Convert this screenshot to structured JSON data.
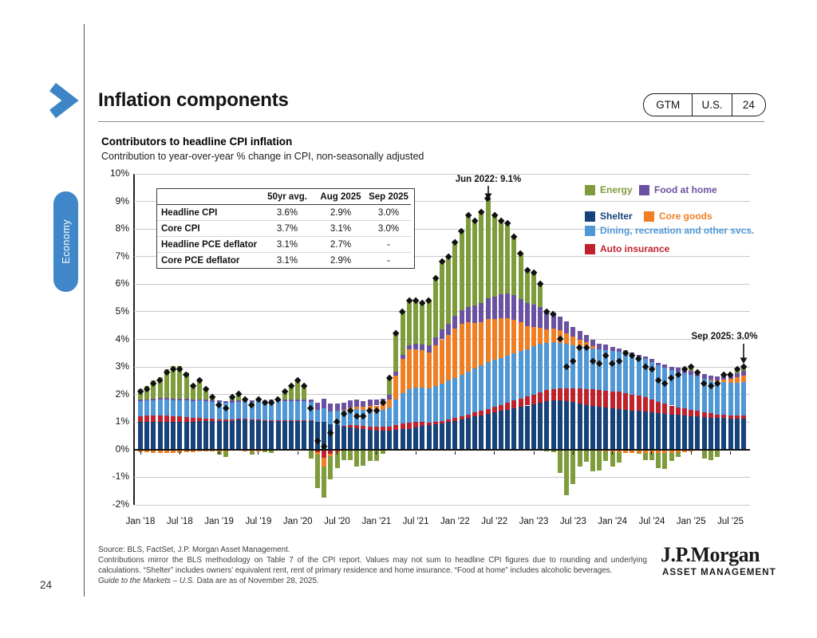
{
  "page": {
    "number": "24"
  },
  "header": {
    "title": "Inflation components",
    "accent_color": "#3d85c6"
  },
  "gtm_pill": {
    "items": [
      "GTM",
      "U.S.",
      "24"
    ]
  },
  "sidebar_tab": {
    "label": "Economy",
    "color": "#3f87c8"
  },
  "chart": {
    "title": "Contributors to headline CPI inflation",
    "subtitle": "Contribution to year-over-year % change in CPI, non-seasonally adjusted",
    "table": {
      "columns": [
        "50yr avg.",
        "Aug 2025",
        "Sep 2025"
      ],
      "rows": [
        {
          "label": "Headline CPI",
          "values": [
            "3.6%",
            "2.9%",
            "3.0%"
          ]
        },
        {
          "label": "Core CPI",
          "values": [
            "3.7%",
            "3.1%",
            "3.0%"
          ]
        },
        {
          "label": "Headline PCE deflator",
          "values": [
            "3.1%",
            "2.7%",
            "-"
          ]
        },
        {
          "label": "Core PCE deflator",
          "values": [
            "3.1%",
            "2.9%",
            "-"
          ]
        }
      ]
    },
    "legend": [
      {
        "label": "Energy",
        "color": "#7f9c3d"
      },
      {
        "label": "Food at home",
        "color": "#6b51a1"
      },
      {
        "label": "Shelter",
        "color": "#17437b"
      },
      {
        "label": "Core goods",
        "color": "#f07f23"
      },
      {
        "label": "Dining, recreation and other svcs.",
        "color": "#4f97d5"
      },
      {
        "label": "Auto insurance",
        "color": "#c0222c"
      }
    ],
    "annotations": [
      {
        "text": "Jun 2022: 9.1%"
      },
      {
        "text": "Sep 2025: 3.0%"
      }
    ]
  },
  "chart_data": {
    "type": "bar",
    "stacked": true,
    "title": "Contributors to headline CPI inflation",
    "ylim": [
      -2,
      10
    ],
    "yticks": [
      10,
      9,
      8,
      7,
      6,
      5,
      4,
      3,
      2,
      1,
      0,
      -1,
      -2
    ],
    "ytick_suffix": "%",
    "n_months": 93,
    "x_start": "Jan 2018",
    "x_end": "Sep 2025",
    "x_tick_every": 6,
    "x_tick_labels": [
      "Jan '18",
      "Jul '18",
      "Jan '19",
      "Jul '19",
      "Jan '20",
      "Jul '20",
      "Jan '21",
      "Jul '21",
      "Jan '22",
      "Jul '22",
      "Jan '23",
      "Jul '23",
      "Jan '24",
      "Jul '24",
      "Jan '25",
      "Jul '25"
    ],
    "series": [
      {
        "key": "shelter",
        "name": "Shelter",
        "color": "#17437b",
        "values": [
          1.0,
          1.0,
          1.0,
          1.02,
          1.02,
          1.02,
          1.02,
          1.02,
          1.02,
          1.05,
          1.05,
          1.05,
          1.05,
          1.05,
          1.05,
          1.08,
          1.08,
          1.08,
          1.08,
          1.05,
          1.05,
          1.05,
          1.05,
          1.05,
          1.05,
          1.05,
          1.05,
          1.0,
          1.0,
          0.92,
          0.9,
          0.85,
          0.8,
          0.78,
          0.75,
          0.72,
          0.7,
          0.7,
          0.7,
          0.72,
          0.74,
          0.76,
          0.8,
          0.85,
          0.88,
          0.92,
          0.95,
          1.0,
          1.05,
          1.1,
          1.15,
          1.2,
          1.25,
          1.3,
          1.35,
          1.4,
          1.45,
          1.5,
          1.55,
          1.6,
          1.65,
          1.7,
          1.75,
          1.78,
          1.78,
          1.75,
          1.72,
          1.68,
          1.62,
          1.58,
          1.55,
          1.52,
          1.5,
          1.48,
          1.45,
          1.42,
          1.4,
          1.38,
          1.35,
          1.32,
          1.3,
          1.28,
          1.26,
          1.24,
          1.22,
          1.2,
          1.18,
          1.16,
          1.14,
          1.14,
          1.12,
          1.12,
          1.12
        ]
      },
      {
        "key": "auto-insurance",
        "name": "Auto insurance",
        "color": "#c0222c",
        "values": [
          0.22,
          0.23,
          0.23,
          0.23,
          0.22,
          0.2,
          0.18,
          0.15,
          0.12,
          0.1,
          0.08,
          0.06,
          0.05,
          0.04,
          0.04,
          0.03,
          0.03,
          0.02,
          0.02,
          0.02,
          0.02,
          0.02,
          0.02,
          0.02,
          0.02,
          0.02,
          0.02,
          -0.08,
          -0.28,
          -0.15,
          -0.05,
          0.02,
          0.08,
          0.1,
          0.1,
          0.12,
          0.12,
          0.12,
          0.14,
          0.16,
          0.2,
          0.22,
          0.2,
          0.15,
          0.1,
          0.1,
          0.1,
          0.1,
          0.1,
          0.1,
          0.12,
          0.14,
          0.16,
          0.18,
          0.2,
          0.22,
          0.25,
          0.28,
          0.3,
          0.32,
          0.35,
          0.38,
          0.4,
          0.42,
          0.45,
          0.48,
          0.5,
          0.55,
          0.58,
          0.6,
          0.62,
          0.62,
          0.62,
          0.62,
          0.6,
          0.58,
          0.55,
          0.52,
          0.48,
          0.42,
          0.38,
          0.32,
          0.28,
          0.25,
          0.22,
          0.2,
          0.18,
          0.16,
          0.14,
          0.13,
          0.12,
          0.12,
          0.12
        ]
      },
      {
        "key": "dining-recreation",
        "name": "Dining, recreation and other svcs.",
        "color": "#4f97d5",
        "values": [
          0.55,
          0.55,
          0.57,
          0.57,
          0.58,
          0.58,
          0.6,
          0.62,
          0.62,
          0.63,
          0.63,
          0.63,
          0.62,
          0.62,
          0.62,
          0.62,
          0.62,
          0.63,
          0.65,
          0.67,
          0.68,
          0.68,
          0.68,
          0.68,
          0.68,
          0.68,
          0.66,
          0.45,
          0.5,
          0.45,
          0.5,
          0.55,
          0.58,
          0.58,
          0.58,
          0.6,
          0.6,
          0.62,
          0.68,
          0.95,
          1.1,
          1.2,
          1.25,
          1.25,
          1.25,
          1.3,
          1.35,
          1.4,
          1.45,
          1.5,
          1.55,
          1.6,
          1.65,
          1.7,
          1.7,
          1.7,
          1.72,
          1.72,
          1.72,
          1.72,
          1.75,
          1.75,
          1.72,
          1.7,
          1.65,
          1.6,
          1.55,
          1.52,
          1.5,
          1.48,
          1.48,
          1.48,
          1.45,
          1.45,
          1.45,
          1.42,
          1.4,
          1.38,
          1.35,
          1.32,
          1.3,
          1.28,
          1.28,
          1.28,
          1.28,
          1.26,
          1.22,
          1.2,
          1.18,
          1.18,
          1.18,
          1.18,
          1.2
        ]
      },
      {
        "key": "core-goods",
        "name": "Core goods",
        "color": "#f07f23",
        "values": [
          -0.1,
          -0.1,
          -0.12,
          -0.12,
          -0.12,
          -0.12,
          -0.12,
          -0.1,
          -0.08,
          -0.06,
          -0.05,
          -0.05,
          -0.05,
          -0.05,
          -0.04,
          -0.04,
          -0.05,
          -0.06,
          -0.05,
          -0.04,
          -0.04,
          -0.03,
          -0.02,
          -0.02,
          -0.02,
          -0.02,
          -0.02,
          -0.1,
          -0.32,
          -0.1,
          -0.05,
          0.02,
          0.08,
          0.1,
          0.12,
          0.15,
          0.18,
          0.2,
          0.3,
          0.85,
          1.25,
          1.45,
          1.4,
          1.35,
          1.3,
          1.45,
          1.6,
          1.65,
          1.8,
          1.85,
          1.8,
          1.65,
          1.55,
          1.55,
          1.5,
          1.45,
          1.35,
          1.2,
          1.05,
          0.85,
          0.7,
          0.6,
          0.5,
          0.48,
          0.45,
          0.4,
          0.32,
          0.25,
          0.2,
          0.1,
          0.0,
          -0.05,
          -0.1,
          -0.1,
          -0.12,
          -0.12,
          -0.12,
          -0.12,
          -0.12,
          -0.12,
          -0.12,
          -0.12,
          -0.1,
          -0.08,
          -0.05,
          -0.04,
          -0.03,
          0.02,
          0.05,
          0.1,
          0.15,
          0.2,
          0.25
        ]
      },
      {
        "key": "food-at-home",
        "name": "Food at home",
        "color": "#6b51a1",
        "values": [
          0.05,
          0.05,
          0.05,
          0.05,
          0.05,
          0.05,
          0.05,
          0.05,
          0.05,
          0.05,
          0.05,
          0.06,
          0.06,
          0.06,
          0.07,
          0.06,
          0.06,
          0.06,
          0.06,
          0.06,
          0.06,
          0.08,
          0.08,
          0.08,
          0.08,
          0.08,
          0.1,
          0.25,
          0.35,
          0.3,
          0.28,
          0.25,
          0.25,
          0.25,
          0.22,
          0.22,
          0.22,
          0.2,
          0.18,
          0.15,
          0.15,
          0.15,
          0.18,
          0.2,
          0.25,
          0.3,
          0.35,
          0.4,
          0.45,
          0.5,
          0.55,
          0.65,
          0.7,
          0.75,
          0.8,
          0.85,
          0.9,
          0.9,
          0.85,
          0.82,
          0.8,
          0.75,
          0.68,
          0.6,
          0.5,
          0.42,
          0.35,
          0.3,
          0.25,
          0.22,
          0.2,
          0.18,
          0.15,
          0.12,
          0.1,
          0.1,
          0.1,
          0.1,
          0.1,
          0.1,
          0.12,
          0.12,
          0.14,
          0.15,
          0.15,
          0.15,
          0.15,
          0.15,
          0.15,
          0.15,
          0.15,
          0.15,
          0.18
        ]
      },
      {
        "key": "energy",
        "name": "Energy",
        "color": "#7f9c3d",
        "values": [
          0.38,
          0.47,
          0.67,
          0.75,
          1.05,
          1.17,
          1.17,
          0.96,
          0.57,
          0.73,
          0.44,
          0.15,
          -0.13,
          -0.22,
          0.16,
          0.25,
          0.06,
          -0.13,
          0.04,
          -0.06,
          -0.07,
          0.0,
          0.29,
          0.49,
          0.69,
          0.49,
          -0.31,
          -1.22,
          -1.15,
          -0.82,
          -0.58,
          -0.39,
          -0.39,
          -0.61,
          -0.57,
          -0.41,
          -0.42,
          -0.14,
          0.6,
          1.37,
          1.56,
          1.62,
          1.57,
          1.5,
          1.62,
          2.13,
          2.45,
          2.45,
          2.65,
          2.85,
          3.33,
          3.06,
          3.29,
          3.62,
          2.95,
          2.68,
          2.53,
          2.1,
          1.63,
          1.19,
          1.15,
          0.82,
          -0.05,
          -0.08,
          -0.83,
          -1.65,
          -1.24,
          -0.6,
          -0.45,
          -0.78,
          -0.75,
          -0.35,
          -0.52,
          -0.37,
          0.02,
          0.0,
          -0.03,
          -0.26,
          -0.26,
          -0.54,
          -0.58,
          -0.28,
          -0.16,
          0.06,
          0.18,
          0.03,
          -0.3,
          -0.39,
          -0.26,
          0.0,
          -0.02,
          0.13,
          0.13
        ]
      }
    ],
    "overlay": {
      "name": "Headline CPI (y/y %)",
      "marker": "diamond",
      "color": "#111111",
      "values": [
        2.1,
        2.2,
        2.4,
        2.5,
        2.8,
        2.9,
        2.9,
        2.7,
        2.3,
        2.5,
        2.2,
        1.9,
        1.6,
        1.5,
        1.9,
        2.0,
        1.8,
        1.6,
        1.8,
        1.7,
        1.7,
        1.8,
        2.1,
        2.3,
        2.5,
        2.3,
        1.5,
        0.3,
        0.1,
        0.6,
        1.0,
        1.3,
        1.4,
        1.2,
        1.2,
        1.4,
        1.4,
        1.7,
        2.6,
        4.2,
        5.0,
        5.4,
        5.4,
        5.3,
        5.4,
        6.2,
        6.8,
        7.0,
        7.5,
        7.9,
        8.5,
        8.3,
        8.6,
        9.1,
        8.5,
        8.3,
        8.2,
        7.7,
        7.1,
        6.5,
        6.4,
        6.0,
        5.0,
        4.9,
        4.0,
        3.0,
        3.2,
        3.7,
        3.7,
        3.2,
        3.1,
        3.4,
        3.1,
        3.2,
        3.5,
        3.4,
        3.3,
        3.0,
        2.9,
        2.5,
        2.4,
        2.6,
        2.7,
        2.9,
        3.0,
        2.8,
        2.4,
        2.3,
        2.4,
        2.7,
        2.7,
        2.9,
        3.0
      ]
    },
    "annotations": [
      {
        "text": "Jun 2022: 9.1%",
        "month_index": 53,
        "value": 9.1
      },
      {
        "text": "Sep 2025: 3.0%",
        "month_index": 92,
        "value": 3.0
      }
    ]
  },
  "footer": {
    "source": "Source: BLS, FactSet, J.P. Morgan Asset Management.",
    "note": "Contributions mirror the BLS methodology on Table 7 of the CPI report. Values may not sum to headline CPI figures due to rounding and underlying calculations. “Shelter” includes owners’ equivalent rent, rent of primary residence and home insurance. “Food at home” includes alcoholic beverages.",
    "gtm_italic": "Guide to the Markets – U.S.",
    "gtm_rest": " Data are as of November 28, 2025.",
    "brand": "J.P.Morgan",
    "brand_sub": "ASSET MANAGEMENT"
  }
}
